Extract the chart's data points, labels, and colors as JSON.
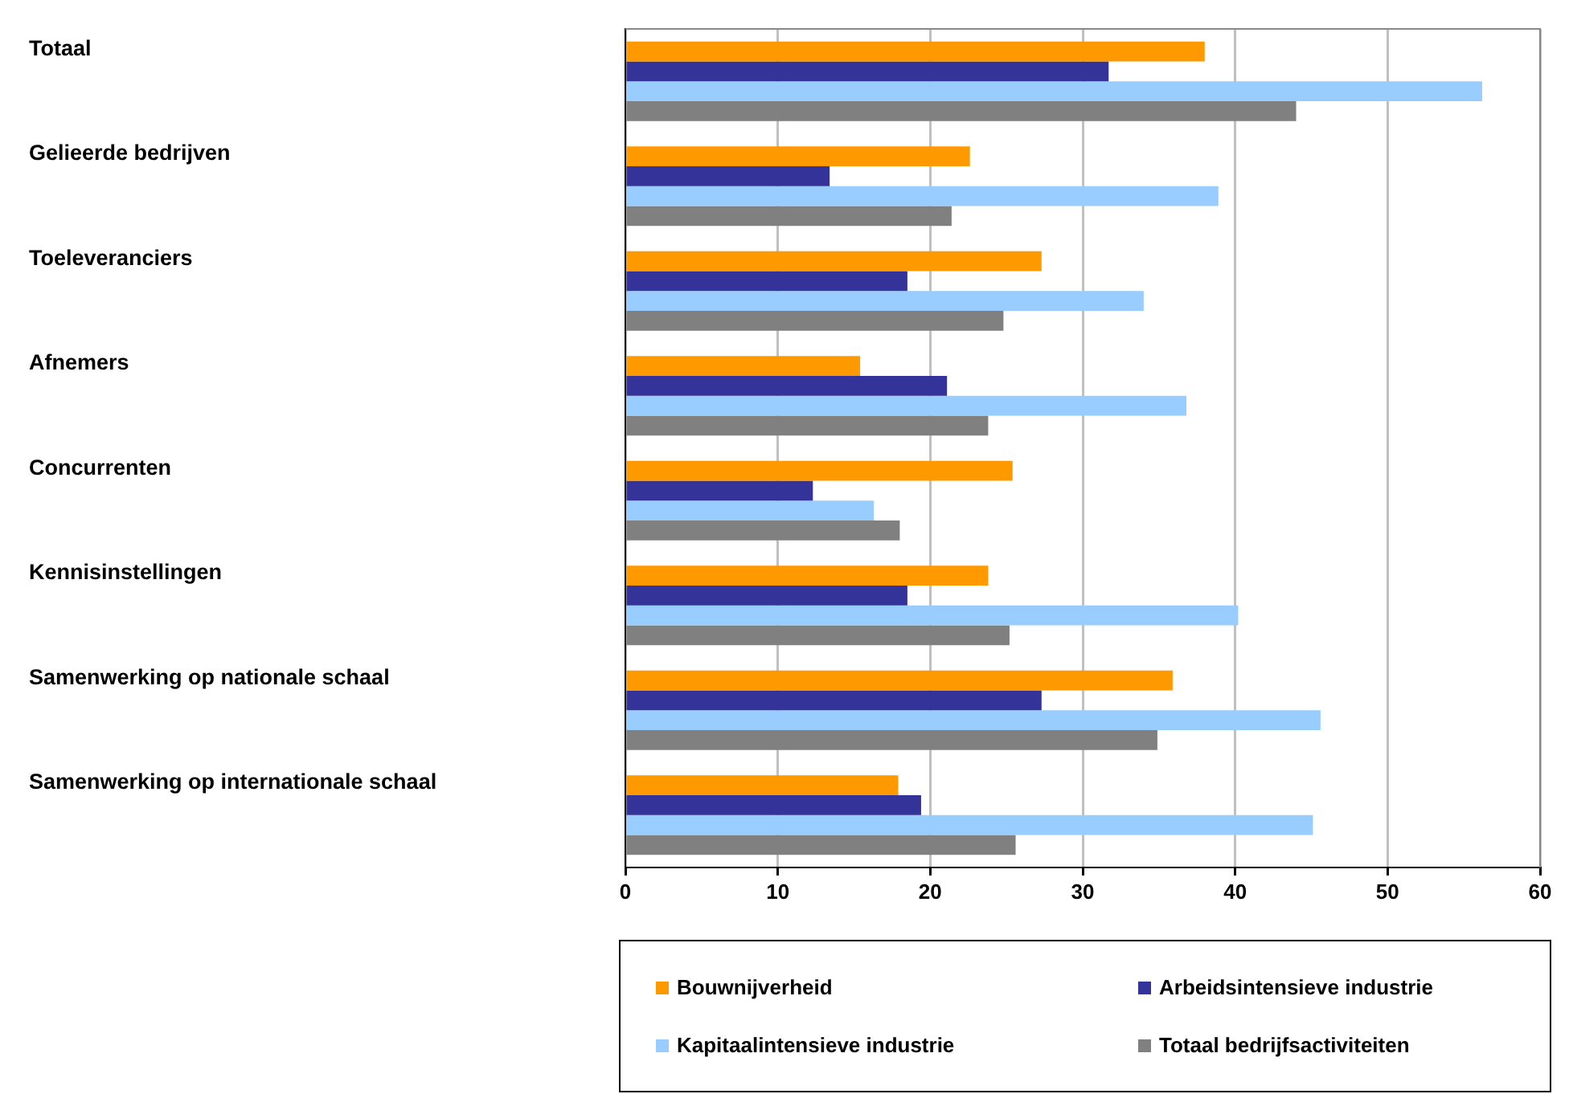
{
  "chart_data": {
    "type": "bar",
    "orientation": "horizontal",
    "categories": [
      "Totaal",
      "Gelieerde bedrijven",
      "Toeleveranciers",
      "Afnemers",
      "Concurrenten",
      "Kennisinstellingen",
      "Samenwerking op nationale schaal",
      "Samenwerking op internationale schaal"
    ],
    "series": [
      {
        "name": "Bouwnijverheid",
        "color": "#ff9900",
        "values": [
          38.0,
          22.6,
          27.3,
          15.4,
          25.4,
          23.8,
          35.9,
          17.9
        ]
      },
      {
        "name": "Arbeidsintensieve industrie",
        "color": "#333399",
        "values": [
          31.7,
          13.4,
          18.5,
          21.1,
          12.3,
          18.5,
          27.3,
          19.4
        ]
      },
      {
        "name": "Kapitaalintensieve industrie",
        "color": "#99ccff",
        "values": [
          56.2,
          38.9,
          34.0,
          36.8,
          16.3,
          40.2,
          45.6,
          45.1
        ]
      },
      {
        "name": "Totaal bedrijfsactiviteiten",
        "color": "#808080",
        "values": [
          44.0,
          21.4,
          24.8,
          23.8,
          18.0,
          25.2,
          34.9,
          25.6
        ]
      }
    ],
    "xlim": [
      0,
      60
    ],
    "xticks": [
      0,
      10,
      20,
      30,
      40,
      50,
      60
    ],
    "grid": "x",
    "legend": "bottom"
  }
}
